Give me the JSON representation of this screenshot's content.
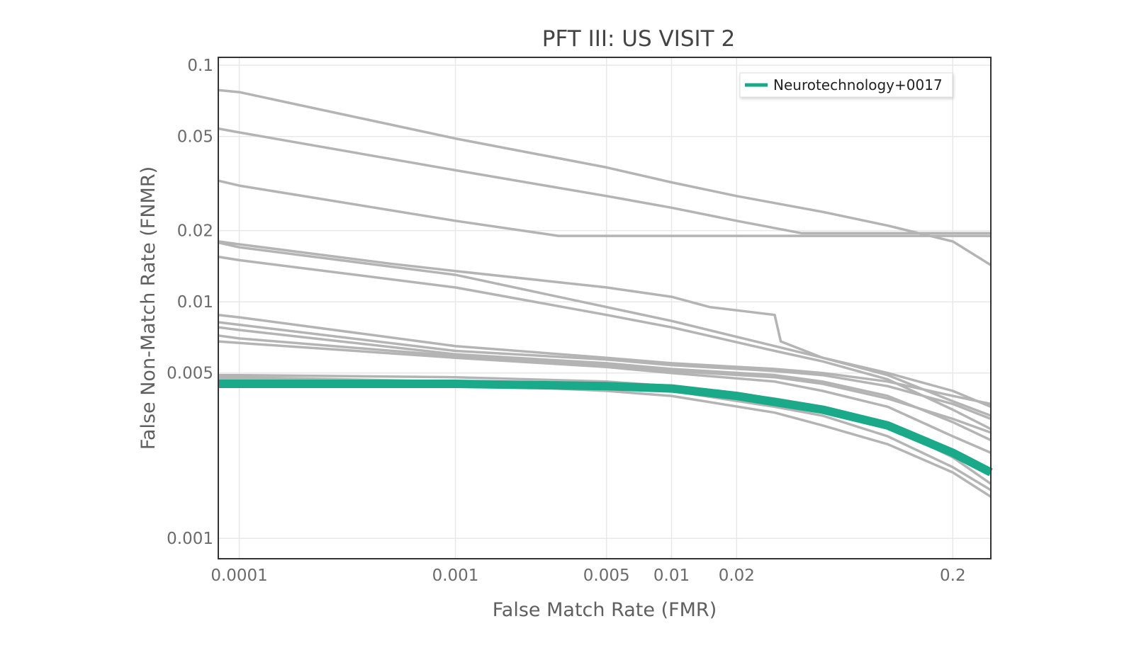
{
  "chart_data": {
    "type": "line",
    "title": "PFT III: US VISIT 2",
    "xlabel": "False Match Rate (FMR)",
    "ylabel": "False Non-Match Rate (FNMR)",
    "x_scale": "log",
    "y_scale": "log",
    "xlim": [
      8e-05,
      0.3
    ],
    "ylim": [
      0.00082,
      0.108
    ],
    "grid": true,
    "legend_position": "top-right",
    "x_ticks": [
      {
        "value": 0.0001,
        "label": "0.0001"
      },
      {
        "value": 0.001,
        "label": "0.001"
      },
      {
        "value": 0.005,
        "label": "0.005"
      },
      {
        "value": 0.01,
        "label": "0.01"
      },
      {
        "value": 0.02,
        "label": "0.02"
      },
      {
        "value": 0.2,
        "label": "0.2"
      }
    ],
    "y_ticks": [
      {
        "value": 0.1,
        "label": "0.1"
      },
      {
        "value": 0.05,
        "label": "0.05"
      },
      {
        "value": 0.02,
        "label": "0.02"
      },
      {
        "value": 0.01,
        "label": "0.01"
      },
      {
        "value": 0.005,
        "label": "0.005"
      },
      {
        "value": 0.001,
        "label": "0.001"
      }
    ],
    "colors": {
      "highlight": "#1aaa8a",
      "background_series": "#b4b4b4",
      "grid": "#e8e8e8",
      "frame": "#333333"
    },
    "series": [
      {
        "name": "Neurotechnology+0017",
        "highlight": true,
        "x": [
          8e-05,
          0.0001,
          0.001,
          0.005,
          0.01,
          0.02,
          0.05,
          0.1,
          0.2,
          0.3
        ],
        "y": [
          0.0045,
          0.0045,
          0.0045,
          0.0044,
          0.0043,
          0.004,
          0.0035,
          0.003,
          0.0023,
          0.0019
        ]
      },
      {
        "highlight": false,
        "x": [
          8e-05,
          0.0001,
          0.001,
          0.005,
          0.01,
          0.02,
          0.05,
          0.1,
          0.2,
          0.3
        ],
        "y": [
          0.0785,
          0.077,
          0.049,
          0.037,
          0.032,
          0.028,
          0.024,
          0.021,
          0.018,
          0.0143
        ]
      },
      {
        "highlight": false,
        "x": [
          8e-05,
          0.0001,
          0.001,
          0.005,
          0.01,
          0.02,
          0.04,
          0.1,
          0.3
        ],
        "y": [
          0.054,
          0.052,
          0.036,
          0.028,
          0.025,
          0.022,
          0.0195,
          0.0195,
          0.0195
        ]
      },
      {
        "highlight": false,
        "x": [
          8e-05,
          0.0001,
          0.001,
          0.003,
          0.01,
          0.1,
          0.3
        ],
        "y": [
          0.0325,
          0.031,
          0.022,
          0.019,
          0.019,
          0.019,
          0.019
        ]
      },
      {
        "highlight": false,
        "x": [
          8e-05,
          0.0001,
          0.0005,
          0.001,
          0.005,
          0.01,
          0.015,
          0.03,
          0.032,
          0.05,
          0.1,
          0.2,
          0.3
        ],
        "y": [
          0.018,
          0.0175,
          0.0145,
          0.0135,
          0.0115,
          0.0105,
          0.0095,
          0.0088,
          0.0068,
          0.0058,
          0.005,
          0.0042,
          0.0036
        ]
      },
      {
        "highlight": false,
        "x": [
          8e-05,
          0.0001,
          0.001,
          0.005,
          0.01,
          0.03,
          0.05,
          0.1,
          0.2,
          0.3
        ],
        "y": [
          0.0178,
          0.017,
          0.013,
          0.0095,
          0.0083,
          0.0065,
          0.0058,
          0.0049,
          0.0038,
          0.0033
        ]
      },
      {
        "highlight": false,
        "x": [
          8e-05,
          0.0001,
          0.001,
          0.005,
          0.01,
          0.03,
          0.05,
          0.1,
          0.2,
          0.3
        ],
        "y": [
          0.0155,
          0.015,
          0.0115,
          0.0088,
          0.0078,
          0.0062,
          0.0056,
          0.0047,
          0.0035,
          0.0029
        ]
      },
      {
        "highlight": false,
        "x": [
          8e-05,
          0.0001,
          0.001,
          0.005,
          0.01,
          0.03,
          0.05,
          0.1,
          0.2,
          0.3
        ],
        "y": [
          0.0088,
          0.0086,
          0.0065,
          0.0058,
          0.0055,
          0.0052,
          0.005,
          0.0046,
          0.004,
          0.0037
        ]
      },
      {
        "highlight": false,
        "x": [
          8e-05,
          0.0001,
          0.001,
          0.005,
          0.01,
          0.03,
          0.05,
          0.1,
          0.2,
          0.3
        ],
        "y": [
          0.0082,
          0.008,
          0.0062,
          0.0057,
          0.0054,
          0.0051,
          0.0049,
          0.0044,
          0.0037,
          0.0032
        ]
      },
      {
        "highlight": false,
        "x": [
          8e-05,
          0.0001,
          0.001,
          0.005,
          0.01,
          0.03,
          0.05,
          0.1,
          0.2,
          0.3
        ],
        "y": [
          0.0078,
          0.0076,
          0.006,
          0.0055,
          0.0052,
          0.0049,
          0.0046,
          0.004,
          0.0031,
          0.0026
        ]
      },
      {
        "highlight": false,
        "x": [
          8e-05,
          0.0001,
          0.001,
          0.005,
          0.01,
          0.03,
          0.05,
          0.1,
          0.2,
          0.3
        ],
        "y": [
          0.0072,
          0.007,
          0.0059,
          0.0054,
          0.0051,
          0.0048,
          0.0045,
          0.0039,
          0.0032,
          0.0028
        ]
      },
      {
        "highlight": false,
        "x": [
          8e-05,
          0.0001,
          0.001,
          0.005,
          0.01,
          0.03,
          0.05,
          0.1,
          0.2,
          0.3
        ],
        "y": [
          0.0068,
          0.0067,
          0.0058,
          0.0053,
          0.005,
          0.0046,
          0.0042,
          0.0036,
          0.0027,
          0.0023
        ]
      },
      {
        "highlight": false,
        "x": [
          8e-05,
          0.0001,
          0.001,
          0.005,
          0.01,
          0.03,
          0.05,
          0.1,
          0.2,
          0.3
        ],
        "y": [
          0.0049,
          0.0049,
          0.0048,
          0.0046,
          0.0044,
          0.0039,
          0.0036,
          0.003,
          0.0022,
          0.0017
        ]
      },
      {
        "highlight": false,
        "x": [
          8e-05,
          0.0001,
          0.001,
          0.005,
          0.01,
          0.03,
          0.05,
          0.1,
          0.2,
          0.3
        ],
        "y": [
          0.0048,
          0.0048,
          0.0046,
          0.0044,
          0.0042,
          0.0036,
          0.0033,
          0.0027,
          0.002,
          0.0016
        ]
      },
      {
        "highlight": false,
        "x": [
          8e-05,
          0.0001,
          0.001,
          0.005,
          0.01,
          0.03,
          0.05,
          0.1,
          0.2,
          0.3
        ],
        "y": [
          0.0047,
          0.0047,
          0.0045,
          0.0042,
          0.004,
          0.0034,
          0.003,
          0.0025,
          0.0019,
          0.0015
        ]
      }
    ]
  }
}
